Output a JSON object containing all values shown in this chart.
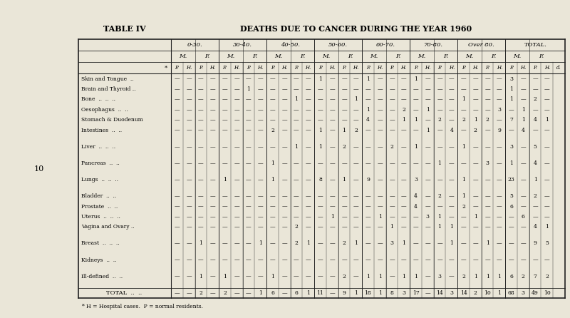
{
  "title": "TABLE IV",
  "main_title": "DEATHS DUE TO CANCER DURING THE YEAR 1960",
  "bg_color": "#eae6d8",
  "age_groups": [
    "0-30.",
    "30-40.",
    "40-50.",
    "50-60.",
    "60-70.",
    "70-80.",
    "Over 80.",
    "TOTAL."
  ],
  "footnote": "* H = Hospital cases.  P = normal residents.",
  "table_data": {
    "Skin and Tongue": [
      "—",
      "—",
      "—",
      "—",
      "—",
      "—",
      "—",
      "—",
      "—",
      "—",
      "—",
      "—",
      "1",
      "—",
      "—",
      "—",
      "1",
      "—",
      "—",
      "—",
      "1",
      "—",
      "—",
      "—",
      "—",
      "—",
      "—",
      "—",
      "3",
      "—",
      "—",
      "—"
    ],
    "Brain and Thyroid": [
      "—",
      "—",
      "—",
      "—",
      "—",
      "—",
      "1",
      "—",
      "—",
      "—",
      "—",
      "—",
      "—",
      "—",
      "—",
      "—",
      "—",
      "—",
      "—",
      "—",
      "—",
      "—",
      "—",
      "—",
      "—",
      "—",
      "—",
      "—",
      "1",
      "—",
      "—",
      "—"
    ],
    "Bone": [
      "—",
      "—",
      "—",
      "—",
      "—",
      "—",
      "—",
      "—",
      "—",
      "—",
      "1",
      "—",
      "—",
      "—",
      "—",
      "1",
      "—",
      "—",
      "—",
      "—",
      "—",
      "—",
      "—",
      "—",
      "1",
      "—",
      "—",
      "—",
      "1",
      "—",
      "2",
      "—"
    ],
    "Oesophagus": [
      "—",
      "—",
      "—",
      "—",
      "—",
      "—",
      "—",
      "—",
      "—",
      "—",
      "—",
      "—",
      "—",
      "—",
      "—",
      "—",
      "1",
      "—",
      "—",
      "2",
      "—",
      "1",
      "—",
      "—",
      "—",
      "—",
      "—",
      "3",
      "—",
      "1",
      "—",
      "—"
    ],
    "Stomach & Duodenum": [
      "—",
      "—",
      "—",
      "—",
      "—",
      "—",
      "—",
      "—",
      "—",
      "—",
      "—",
      "—",
      "—",
      "—",
      "—",
      "—",
      "4",
      "—",
      "—",
      "1",
      "1",
      "—",
      "2",
      "—",
      "2",
      "1",
      "2",
      "—",
      "7",
      "1",
      "4",
      "1"
    ],
    "Intestines": [
      "—",
      "—",
      "—",
      "—",
      "—",
      "—",
      "—",
      "—",
      "2",
      "—",
      "—",
      "—",
      "1",
      "—",
      "1",
      "2",
      "—",
      "—",
      "—",
      "—",
      "—",
      "1",
      "—",
      "4",
      "—",
      "2",
      "—",
      "9",
      "—",
      "4",
      "—",
      "—"
    ],
    "Liver": [
      "—",
      "—",
      "—",
      "—",
      "—",
      "—",
      "—",
      "—",
      "—",
      "—",
      "1",
      "—",
      "1",
      "—",
      "2",
      "—",
      "—",
      "—",
      "2",
      "—",
      "1",
      "—",
      "—",
      "—",
      "1",
      "—",
      "—",
      "—",
      "3",
      "—",
      "5",
      "—"
    ],
    "Pancreas": [
      "—",
      "—",
      "—",
      "—",
      "—",
      "—",
      "—",
      "—",
      "1",
      "—",
      "—",
      "—",
      "—",
      "—",
      "—",
      "—",
      "—",
      "—",
      "—",
      "—",
      "—",
      "—",
      "1",
      "—",
      "—",
      "—",
      "3",
      "—",
      "1",
      "—",
      "4",
      "—"
    ],
    "Lungs": [
      "—",
      "—",
      "—",
      "—",
      "1",
      "—",
      "—",
      "—",
      "1",
      "—",
      "—",
      "—",
      "8",
      "—",
      "1",
      "—",
      "9",
      "—",
      "—",
      "—",
      "3",
      "—",
      "—",
      "—",
      "1",
      "—",
      "—",
      "—",
      "23",
      "—",
      "1",
      "—"
    ],
    "Bladder": [
      "—",
      "—",
      "—",
      "—",
      "—",
      "—",
      "—",
      "—",
      "—",
      "—",
      "—",
      "—",
      "—",
      "—",
      "—",
      "—",
      "—",
      "—",
      "—",
      "—",
      "4",
      "—",
      "2",
      "—",
      "1",
      "—",
      "—",
      "—",
      "5",
      "—",
      "2",
      "—"
    ],
    "Prostate": [
      "—",
      "—",
      "—",
      "—",
      "—",
      "—",
      "—",
      "—",
      "—",
      "—",
      "—",
      "—",
      "—",
      "—",
      "—",
      "—",
      "—",
      "—",
      "—",
      "—",
      "4",
      "—",
      "—",
      "—",
      "2",
      "—",
      "—",
      "—",
      "6",
      "—",
      "—",
      "—"
    ],
    "Uterus": [
      "—",
      "—",
      "—",
      "—",
      "—",
      "—",
      "—",
      "—",
      "—",
      "—",
      "—",
      "—",
      "—",
      "1",
      "—",
      "—",
      "—",
      "1",
      "—",
      "—",
      "—",
      "3",
      "1",
      "—",
      "—",
      "1",
      "—",
      "—",
      "—",
      "6",
      "—",
      "—"
    ],
    "Vagina and Ovary": [
      "—",
      "—",
      "—",
      "—",
      "—",
      "—",
      "—",
      "—",
      "—",
      "—",
      "2",
      "—",
      "—",
      "—",
      "—",
      "—",
      "—",
      "—",
      "1",
      "—",
      "—",
      "—",
      "1",
      "1",
      "—",
      "—",
      "—",
      "—",
      "—",
      "—",
      "4",
      "1"
    ],
    "Breast": [
      "—",
      "—",
      "1",
      "—",
      "—",
      "—",
      "—",
      "1",
      "—",
      "—",
      "2",
      "1",
      "—",
      "—",
      "2",
      "1",
      "—",
      "—",
      "3",
      "1",
      "—",
      "—",
      "—",
      "1",
      "—",
      "—",
      "1",
      "—",
      "—",
      "—",
      "9",
      "5"
    ],
    "Kidneys": [
      "—",
      "—",
      "—",
      "—",
      "—",
      "—",
      "—",
      "—",
      "—",
      "—",
      "—",
      "—",
      "—",
      "—",
      "—",
      "—",
      "—",
      "—",
      "—",
      "—",
      "—",
      "—",
      "—",
      "—",
      "—",
      "—",
      "—",
      "—",
      "—",
      "—",
      "—",
      "—"
    ],
    "Ill-defined": [
      "—",
      "—",
      "1",
      "—",
      "1",
      "—",
      "—",
      "—",
      "1",
      "—",
      "—",
      "—",
      "—",
      "—",
      "2",
      "—",
      "1",
      "1",
      "—",
      "1",
      "1",
      "—",
      "3",
      "—",
      "2",
      "1",
      "1",
      "1",
      "6",
      "2",
      "7",
      "2"
    ],
    "TOTAL": [
      "—",
      "—",
      "2",
      "—",
      "2",
      "—",
      "—",
      "1",
      "6",
      "—",
      "6",
      "1",
      "11",
      "—",
      "9",
      "1",
      "18",
      "1",
      "8",
      "3",
      "17",
      "—",
      "14",
      "3",
      "14",
      "2",
      "10",
      "1",
      "68",
      "3",
      "49",
      "10"
    ]
  },
  "rows_config": [
    [
      "Skin and Tongue",
      false
    ],
    [
      "Brain and Thyroid",
      false
    ],
    [
      "Bone",
      false
    ],
    [
      "Oesophagus",
      false
    ],
    [
      "Stomach & Duodenum",
      false
    ],
    [
      "Intestines",
      false
    ],
    [
      "Liver",
      true
    ],
    [
      "Pancreas",
      true
    ],
    [
      "Lungs",
      true
    ],
    [
      "Bladder",
      true
    ],
    [
      "Prostate",
      false
    ],
    [
      "Uterus",
      false
    ],
    [
      "Vagina and Ovary",
      false
    ],
    [
      "Breast",
      true
    ],
    [
      "Kidneys",
      true
    ],
    [
      "Ill-defined",
      true
    ],
    [
      "TOTAL",
      true
    ]
  ],
  "row_label_display": {
    "Skin and Tongue": "Skin and Tongue  ..",
    "Brain and Thyroid": "Brain and Thyroid ..",
    "Bone": "Bone  ..  ..  ..",
    "Oesophagus": "Oesophagus  ..  ..",
    "Stomach & Duodenum": "Stomach & Duodenum",
    "Intestines": "Intestines  ..  ..",
    "Liver": "Liver  ..  ..  ..",
    "Pancreas": "Pancreas  ..  ..",
    "Lungs": "Lungs  ..  ..  ..",
    "Bladder": "Bladder  ..  ..",
    "Prostate": "Prostate  ..  ..",
    "Uterus": "Uterus  ..  ..  ..",
    "Vagina and Ovary": "Vagina and Ovary ..",
    "Breast": "Breast  ..  ..  ..",
    "Kidneys": "Kidneys  ..  ..",
    "Ill-defined": "Ill-defined  ..  ..",
    "TOTAL": "TOTAL  ..  .."
  }
}
